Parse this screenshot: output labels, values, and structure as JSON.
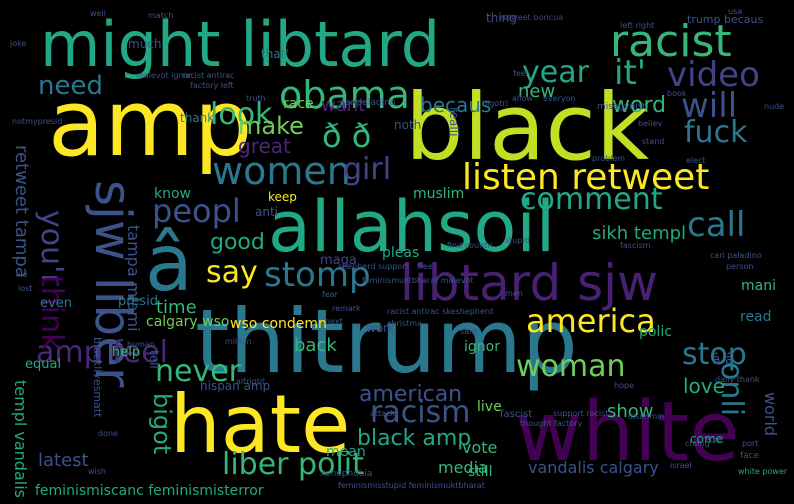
{
  "words": [
    {
      "text": "amp",
      "color": "#fde725"
    },
    {
      "text": "black",
      "color": "#c2df23"
    },
    {
      "text": "thitrump",
      "color": "#2a788e"
    },
    {
      "text": "might libtard",
      "color": "#22a884"
    },
    {
      "text": "allahsoil",
      "color": "#22a884"
    },
    {
      "text": "white",
      "color": "#440154"
    },
    {
      "text": "hate",
      "color": "#fde725"
    },
    {
      "text": "libtard sjw",
      "color": "#482173"
    },
    {
      "text": "â",
      "color": "#2a788e"
    },
    {
      "text": "sjw liber",
      "color": "#3b528b"
    },
    {
      "text": "racist",
      "color": "#35b779"
    },
    {
      "text": "listen retweet",
      "color": "#fde725"
    },
    {
      "text": "obama",
      "color": "#35b779"
    },
    {
      "text": "women",
      "color": "#2a788e"
    },
    {
      "text": "video",
      "color": "#414487"
    },
    {
      "text": "will",
      "color": "#3b528b"
    },
    {
      "text": "year",
      "color": "#22a884"
    },
    {
      "text": "it'",
      "color": "#22a884"
    },
    {
      "text": "look",
      "color": "#35b779"
    },
    {
      "text": "need",
      "color": "#2a788e"
    },
    {
      "text": "fuck",
      "color": "#2a788e"
    },
    {
      "text": "make",
      "color": "#6ece58"
    },
    {
      "text": "ð ð",
      "color": "#35b779"
    },
    {
      "text": "girl",
      "color": "#414487"
    },
    {
      "text": "comment",
      "color": "#22a884"
    },
    {
      "text": "peopl",
      "color": "#3b528b"
    },
    {
      "text": "call",
      "color": "#2a788e"
    },
    {
      "text": "you'r",
      "color": "#414487"
    },
    {
      "text": "stomp",
      "color": "#2a788e"
    },
    {
      "text": "say",
      "color": "#fde725"
    },
    {
      "text": "america",
      "color": "#fde725"
    },
    {
      "text": "amp feel",
      "color": "#482878"
    },
    {
      "text": "think",
      "color": "#440154"
    },
    {
      "text": "woman",
      "color": "#6ece58"
    },
    {
      "text": "stop",
      "color": "#2a788e"
    },
    {
      "text": "onli",
      "color": "#2a788e"
    },
    {
      "text": "never",
      "color": "#35b779"
    },
    {
      "text": "racism",
      "color": "#3b528b"
    },
    {
      "text": "liber polit",
      "color": "#35b779"
    },
    {
      "text": "bigot",
      "color": "#22a884"
    },
    {
      "text": "black amp",
      "color": "#22a884"
    },
    {
      "text": "american",
      "color": "#3b528b"
    },
    {
      "text": "good",
      "color": "#22a884"
    },
    {
      "text": "word",
      "color": "#35b779"
    },
    {
      "text": "want",
      "color": "#482878"
    },
    {
      "text": "becaus",
      "color": "#2a788e"
    },
    {
      "text": "great",
      "color": "#482878"
    },
    {
      "text": "sikh templ",
      "color": "#22a884"
    },
    {
      "text": "love",
      "color": "#22a884"
    },
    {
      "text": "new",
      "color": "#35b779"
    },
    {
      "text": "retweet tampa",
      "color": "#3b528b"
    },
    {
      "text": "tampa miami",
      "color": "#3b528b"
    },
    {
      "text": "time",
      "color": "#35b779"
    },
    {
      "text": "back",
      "color": "#35b779"
    },
    {
      "text": "latest",
      "color": "#3b528b"
    },
    {
      "text": "media",
      "color": "#35b779"
    },
    {
      "text": "vandalis calgary",
      "color": "#3b528b"
    },
    {
      "text": "show",
      "color": "#35b779"
    },
    {
      "text": "wso condemn",
      "color": "#fde725"
    },
    {
      "text": "feminismiscanc feminismisterror",
      "color": "#22a884"
    },
    {
      "text": "templ vandalis",
      "color": "#22a884"
    },
    {
      "text": "vote",
      "color": "#35b779"
    },
    {
      "text": "live",
      "color": "#6ece58"
    },
    {
      "text": "world",
      "color": "#3b528b"
    },
    {
      "text": "ignor",
      "color": "#35b779"
    },
    {
      "text": "read",
      "color": "#2a788e"
    },
    {
      "text": "muslim",
      "color": "#35b779"
    },
    {
      "text": "keep",
      "color": "#fde725"
    },
    {
      "text": "pleas",
      "color": "#22a884"
    },
    {
      "text": "know",
      "color": "#22a884"
    },
    {
      "text": "calgary wso",
      "color": "#6ece58"
    },
    {
      "text": "polic",
      "color": "#22a884"
    },
    {
      "text": "mani",
      "color": "#35b779"
    },
    {
      "text": "work",
      "color": "#3b528b"
    },
    {
      "text": "help",
      "color": "#35b779"
    },
    {
      "text": "presid",
      "color": "#2a788e"
    },
    {
      "text": "equal",
      "color": "#22a884"
    },
    {
      "text": "even",
      "color": "#2a788e"
    },
    {
      "text": "mean",
      "color": "#22a884"
    },
    {
      "text": "still",
      "color": "#35b779"
    },
    {
      "text": "race",
      "color": "#6ece58"
    },
    {
      "text": "maga",
      "color": "#414487"
    },
    {
      "text": "thank",
      "color": "#2a788e"
    },
    {
      "text": "much",
      "color": "#3b528b"
    },
    {
      "text": "that'",
      "color": "#2a788e"
    },
    {
      "text": "thing",
      "color": "#3b528b"
    },
    {
      "text": "come",
      "color": "#22a884"
    },
    {
      "text": "anti",
      "color": "#3b528b"
    },
    {
      "text": "hispan amp",
      "color": "#3b528b"
    },
    {
      "text": "blacklivesmatt",
      "color": "#3b528b"
    },
    {
      "text": "noth",
      "color": "#3b528b"
    },
    {
      "text": "tell",
      "color": "#3b528b"
    },
    {
      "text": "realli",
      "color": "#3b528b"
    },
    {
      "text": "â â",
      "color": "#3b528b"
    },
    {
      "text": "trump becaus",
      "color": "#3b528b"
    },
    {
      "text": "white power",
      "color": "#22a884"
    },
    {
      "text": "retweet boricua",
      "color": "#414487"
    },
    {
      "text": "racist antirac",
      "color": "#3b528b"
    },
    {
      "text": "factory left",
      "color": "#3b528b"
    },
    {
      "text": "malevot ignor",
      "color": "#3b528b"
    },
    {
      "text": "caripaladino",
      "color": "#3b528b"
    },
    {
      "text": "misogynist",
      "color": "#3b528b"
    },
    {
      "text": "notmypresid",
      "color": "#3b528b"
    },
    {
      "text": "fascist",
      "color": "#3b528b"
    },
    {
      "text": "xenophobia",
      "color": "#3b528b"
    },
    {
      "text": "israel",
      "color": "#3b528b"
    },
    {
      "text": "daily thank",
      "color": "#3b528b"
    },
    {
      "text": "thought factory",
      "color": "#3b528b"
    },
    {
      "text": "face",
      "color": "#3b528b"
    },
    {
      "text": "altright",
      "color": "#3b528b"
    },
    {
      "text": "attack",
      "color": "#3b528b"
    },
    {
      "text": "match",
      "color": "#3b528b"
    },
    {
      "text": "well",
      "color": "#3b528b"
    },
    {
      "text": "usa",
      "color": "#3b528b"
    },
    {
      "text": "joke",
      "color": "#3b528b"
    },
    {
      "text": "feel",
      "color": "#3b528b"
    },
    {
      "text": "truth",
      "color": "#3b528b"
    },
    {
      "text": "book",
      "color": "#3b528b"
    },
    {
      "text": "nude",
      "color": "#3b528b"
    },
    {
      "text": "believ",
      "color": "#3b528b"
    },
    {
      "text": "stand",
      "color": "#3b528b"
    },
    {
      "text": "elect",
      "color": "#3b528b"
    },
    {
      "text": "problem",
      "color": "#3b528b"
    },
    {
      "text": "stupid",
      "color": "#3b528b"
    },
    {
      "text": "fascism",
      "color": "#3b528b"
    },
    {
      "text": "cari paladino",
      "color": "#3b528b"
    },
    {
      "text": "person",
      "color": "#3b528b"
    },
    {
      "text": "christma",
      "color": "#3b528b"
    },
    {
      "text": "remark",
      "color": "#3b528b"
    },
    {
      "text": "next",
      "color": "#3b528b"
    },
    {
      "text": "million",
      "color": "#3b528b"
    },
    {
      "text": "human",
      "color": "#3b528b"
    },
    {
      "text": "said",
      "color": "#3b528b"
    },
    {
      "text": "hope",
      "color": "#3b528b"
    },
    {
      "text": "discrimin",
      "color": "#3b528b"
    },
    {
      "text": "educ",
      "color": "#3b528b"
    },
    {
      "text": "port",
      "color": "#3b528b"
    },
    {
      "text": "done",
      "color": "#3b528b"
    },
    {
      "text": "free",
      "color": "#3b528b"
    },
    {
      "text": "lost",
      "color": "#3b528b"
    },
    {
      "text": "lie",
      "color": "#3b528b"
    },
    {
      "text": "fear",
      "color": "#3b528b"
    },
    {
      "text": "men",
      "color": "#3b528b"
    },
    {
      "text": "wish",
      "color": "#3b528b"
    },
    {
      "text": "chang",
      "color": "#3b528b"
    },
    {
      "text": "feminismuktbharat malevot",
      "color": "#3b528b"
    },
    {
      "text": "shepherd support",
      "color": "#3b528b"
    },
    {
      "text": "racist antirac skeshepherd",
      "color": "#3b528b"
    },
    {
      "text": "support racist",
      "color": "#3b528b"
    },
    {
      "text": "feminismisstupid feminismuktbharat",
      "color": "#3b528b"
    },
    {
      "text": "find countri",
      "color": "#3b528b"
    },
    {
      "text": "allow",
      "color": "#3b528b"
    },
    {
      "text": "everyon",
      "color": "#3b528b"
    },
    {
      "text": "left right",
      "color": "#3b528b"
    },
    {
      "text": "bigotri",
      "color": "#3b528b"
    }
  ]
}
